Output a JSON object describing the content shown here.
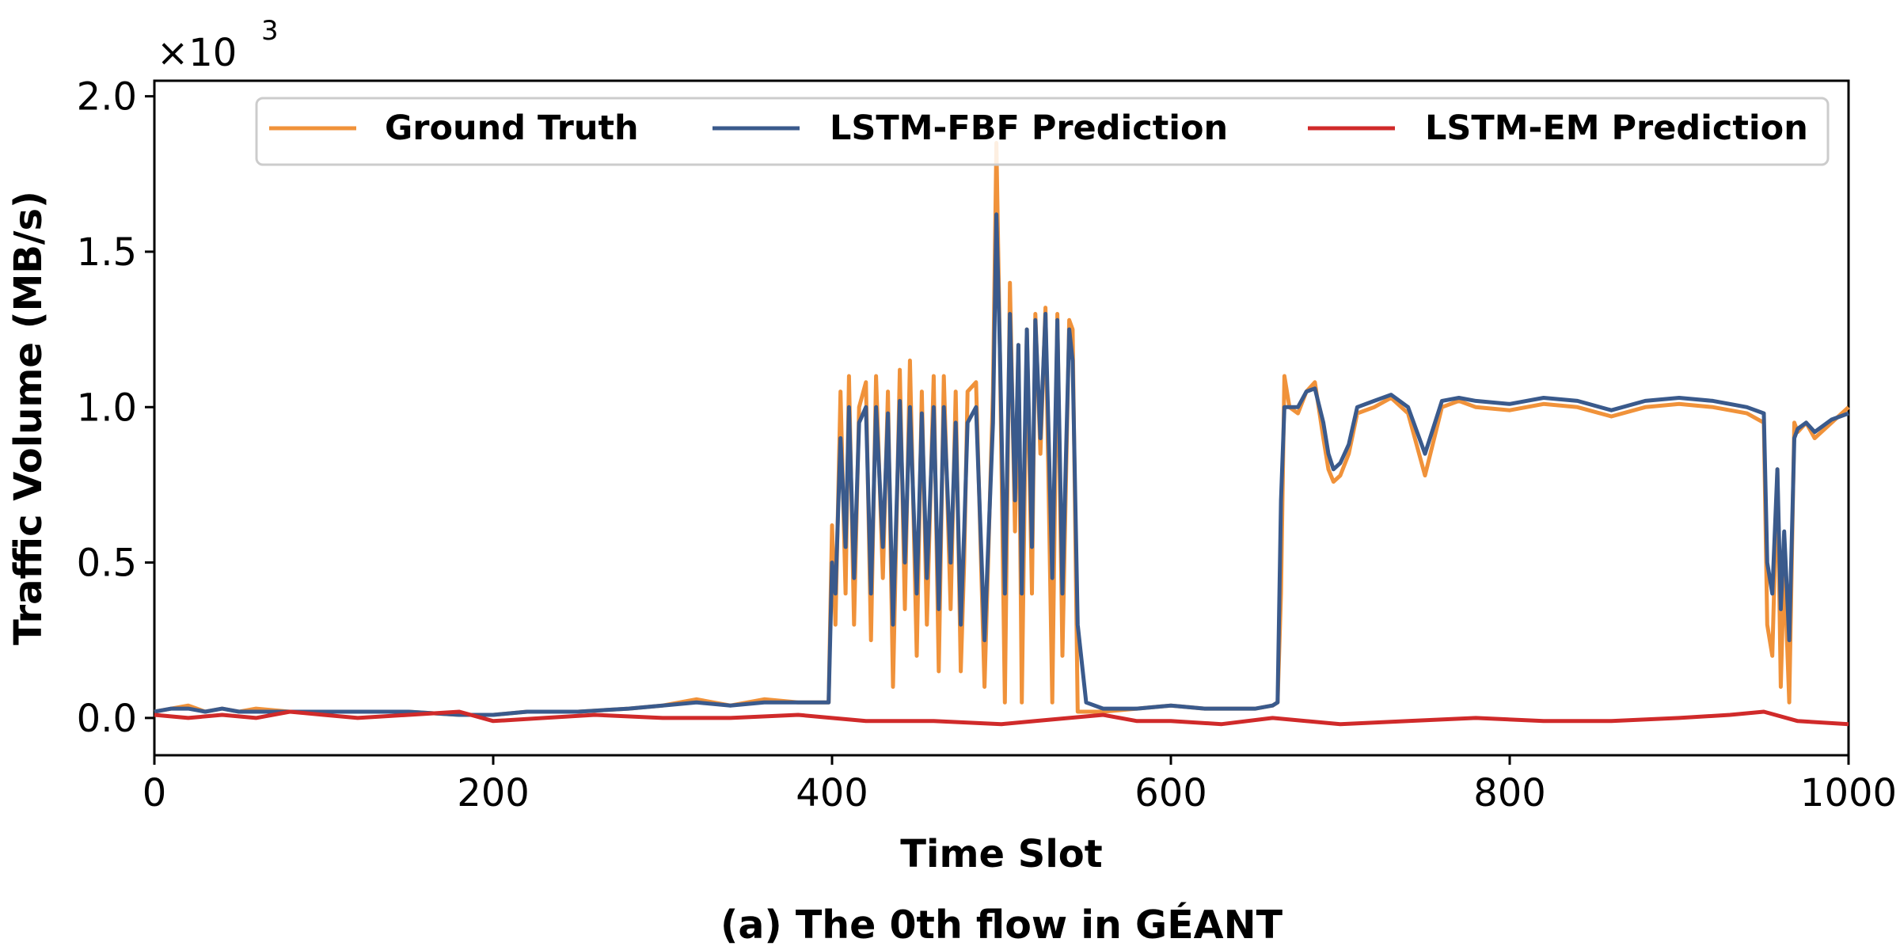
{
  "chart_data": {
    "type": "line",
    "caption": "(a) The 0th flow in GÉANT",
    "xlabel": "Time Slot",
    "ylabel": "Traffic Volume (MB/s)",
    "y_multiplier": {
      "base": "×10",
      "exponent": "3"
    },
    "xlim": [
      0,
      1000
    ],
    "ylim": [
      -0.12,
      2.05
    ],
    "x_ticks": [
      0,
      200,
      400,
      600,
      800,
      1000
    ],
    "x_tick_labels": [
      "0",
      "200",
      "400",
      "600",
      "800",
      "1000"
    ],
    "y_ticks": [
      0.0,
      0.5,
      1.0,
      1.5,
      2.0
    ],
    "y_tick_labels": [
      "0.0",
      "0.5",
      "1.0",
      "1.5",
      "2.0"
    ],
    "grid": false,
    "legend_position": "top",
    "series": [
      {
        "name": "Ground Truth",
        "color": "#F0923A",
        "x": [
          0,
          10,
          20,
          30,
          40,
          50,
          60,
          80,
          100,
          120,
          150,
          180,
          200,
          220,
          250,
          280,
          300,
          320,
          340,
          360,
          380,
          398,
          400,
          402,
          405,
          408,
          410,
          413,
          416,
          420,
          423,
          426,
          430,
          433,
          436,
          440,
          443,
          446,
          450,
          453,
          456,
          460,
          463,
          466,
          470,
          473,
          476,
          478,
          480,
          485,
          490,
          495,
          497,
          499,
          502,
          505,
          508,
          510,
          512,
          515,
          518,
          520,
          523,
          526,
          530,
          533,
          536,
          540,
          542,
          545,
          550,
          560,
          580,
          600,
          620,
          650,
          660,
          663,
          665,
          667,
          670,
          675,
          680,
          685,
          690,
          693,
          696,
          700,
          705,
          710,
          720,
          730,
          740,
          750,
          760,
          770,
          780,
          800,
          820,
          840,
          860,
          880,
          900,
          920,
          940,
          950,
          952,
          955,
          958,
          960,
          962,
          965,
          968,
          970,
          975,
          980,
          990,
          1000
        ],
        "y": [
          0.02,
          0.03,
          0.04,
          0.02,
          0.03,
          0.02,
          0.03,
          0.02,
          0.02,
          0.02,
          0.02,
          0.01,
          0.01,
          0.02,
          0.02,
          0.03,
          0.04,
          0.06,
          0.04,
          0.06,
          0.05,
          0.05,
          0.62,
          0.3,
          1.05,
          0.4,
          1.1,
          0.3,
          1.0,
          1.08,
          0.25,
          1.1,
          0.45,
          1.05,
          0.1,
          1.12,
          0.35,
          1.15,
          0.2,
          1.05,
          0.3,
          1.1,
          0.15,
          1.1,
          0.35,
          1.05,
          0.15,
          0.5,
          1.05,
          1.08,
          0.1,
          1.05,
          1.85,
          1.2,
          0.05,
          1.4,
          0.6,
          1.2,
          0.05,
          1.25,
          0.4,
          1.3,
          0.85,
          1.32,
          0.05,
          1.3,
          0.2,
          1.28,
          1.25,
          0.02,
          0.02,
          0.02,
          0.03,
          0.04,
          0.03,
          0.03,
          0.04,
          0.05,
          0.4,
          1.1,
          1.0,
          0.98,
          1.05,
          1.08,
          0.9,
          0.8,
          0.76,
          0.78,
          0.85,
          0.98,
          1.0,
          1.03,
          0.98,
          0.78,
          1.0,
          1.02,
          1.0,
          0.99,
          1.01,
          1.0,
          0.97,
          1.0,
          1.01,
          1.0,
          0.98,
          0.95,
          0.3,
          0.2,
          0.8,
          0.1,
          0.5,
          0.05,
          0.95,
          0.92,
          0.95,
          0.9,
          0.95,
          1.0
        ]
      },
      {
        "name": "LSTM-FBF Prediction",
        "color": "#3A5A8C",
        "x": [
          0,
          10,
          20,
          30,
          40,
          50,
          60,
          80,
          100,
          120,
          150,
          180,
          200,
          220,
          250,
          280,
          300,
          320,
          340,
          360,
          380,
          398,
          400,
          402,
          405,
          408,
          410,
          413,
          416,
          420,
          423,
          426,
          430,
          433,
          436,
          440,
          443,
          446,
          450,
          453,
          456,
          460,
          463,
          466,
          470,
          473,
          476,
          478,
          480,
          485,
          490,
          495,
          497,
          499,
          502,
          505,
          508,
          510,
          512,
          515,
          518,
          520,
          523,
          526,
          530,
          533,
          536,
          540,
          542,
          545,
          550,
          560,
          580,
          600,
          620,
          650,
          660,
          663,
          665,
          667,
          670,
          675,
          680,
          685,
          690,
          693,
          696,
          700,
          705,
          710,
          720,
          730,
          740,
          750,
          760,
          770,
          780,
          800,
          820,
          840,
          860,
          880,
          900,
          920,
          940,
          950,
          952,
          955,
          958,
          960,
          962,
          965,
          968,
          970,
          975,
          980,
          990,
          1000
        ],
        "y": [
          0.02,
          0.03,
          0.03,
          0.02,
          0.03,
          0.02,
          0.02,
          0.02,
          0.02,
          0.02,
          0.02,
          0.01,
          0.01,
          0.02,
          0.02,
          0.03,
          0.04,
          0.05,
          0.04,
          0.05,
          0.05,
          0.05,
          0.5,
          0.4,
          0.9,
          0.55,
          1.0,
          0.45,
          0.95,
          1.0,
          0.4,
          1.0,
          0.55,
          0.98,
          0.3,
          1.02,
          0.5,
          1.0,
          0.4,
          0.98,
          0.45,
          1.0,
          0.35,
          1.0,
          0.5,
          0.95,
          0.3,
          0.6,
          0.95,
          1.0,
          0.25,
          0.95,
          1.62,
          1.2,
          0.4,
          1.3,
          0.7,
          1.2,
          0.4,
          1.25,
          0.55,
          1.28,
          0.9,
          1.3,
          0.45,
          1.28,
          0.4,
          1.25,
          1.15,
          0.3,
          0.05,
          0.03,
          0.03,
          0.04,
          0.03,
          0.03,
          0.04,
          0.05,
          0.7,
          1.0,
          1.0,
          1.0,
          1.05,
          1.06,
          0.95,
          0.85,
          0.8,
          0.82,
          0.88,
          1.0,
          1.02,
          1.04,
          1.0,
          0.85,
          1.02,
          1.03,
          1.02,
          1.01,
          1.03,
          1.02,
          0.99,
          1.02,
          1.03,
          1.02,
          1.0,
          0.98,
          0.5,
          0.4,
          0.8,
          0.35,
          0.6,
          0.25,
          0.9,
          0.93,
          0.95,
          0.92,
          0.96,
          0.98
        ]
      },
      {
        "name": "LSTM-EM Prediction",
        "color": "#D02A2A",
        "x": [
          0,
          20,
          40,
          60,
          80,
          100,
          120,
          150,
          180,
          200,
          230,
          260,
          300,
          340,
          380,
          420,
          460,
          500,
          520,
          540,
          560,
          580,
          600,
          630,
          660,
          700,
          740,
          780,
          820,
          860,
          900,
          930,
          950,
          970,
          1000
        ],
        "y": [
          0.01,
          0.0,
          0.01,
          0.0,
          0.02,
          0.01,
          0.0,
          0.01,
          0.02,
          -0.01,
          0.0,
          0.01,
          0.0,
          0.0,
          0.01,
          -0.01,
          -0.01,
          -0.02,
          -0.01,
          0.0,
          0.01,
          -0.01,
          -0.01,
          -0.02,
          0.0,
          -0.02,
          -0.01,
          0.0,
          -0.01,
          -0.01,
          0.0,
          0.01,
          0.02,
          -0.01,
          -0.02
        ]
      }
    ]
  }
}
